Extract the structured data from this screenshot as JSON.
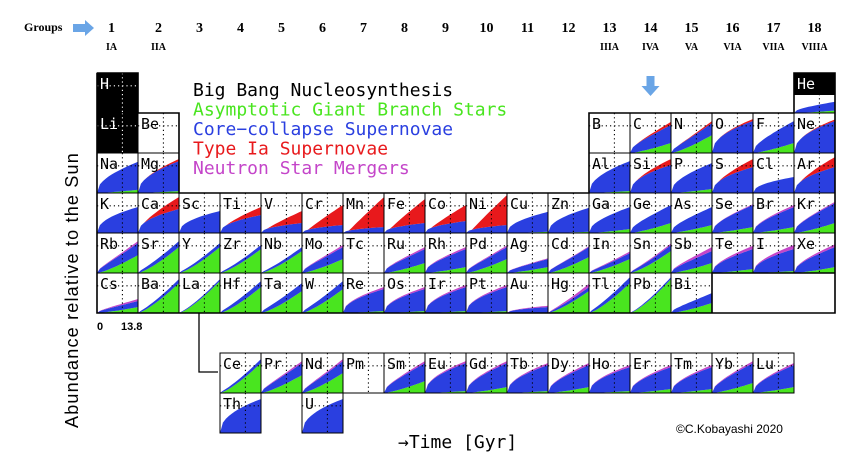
{
  "groups_label": "Groups",
  "group_numbers": [
    "1",
    "2",
    "3",
    "4",
    "5",
    "6",
    "7",
    "8",
    "9",
    "10",
    "11",
    "12",
    "13",
    "14",
    "15",
    "16",
    "17",
    "18"
  ],
  "group_roman": {
    "0": "IA",
    "1": "IIA",
    "12": "IIIA",
    "13": "IVA",
    "14": "VA",
    "15": "VIA",
    "16": "VIIA",
    "17": "VIIIA"
  },
  "y_axis_label": "Abundance relative to the Sun",
  "x_axis_label": "→Time [Gyr]",
  "time_start": "0",
  "time_end": "13.8",
  "copyright": "©C.Kobayashi 2020",
  "legend": [
    {
      "label": "Big Bang Nucleosynthesis",
      "color": "#000000"
    },
    {
      "label": "Asymptotic Giant Branch Stars",
      "color": "#49e51f"
    },
    {
      "label": "Core−collapse Supernovae",
      "color": "#2a3fe0"
    },
    {
      "label": "Type Ia Supernovae",
      "color": "#e8191c"
    },
    {
      "label": "Neutron Star Mergers",
      "color": "#c445c9"
    }
  ],
  "colors": {
    "bbn": "#000000",
    "agb": "#49e51f",
    "ccsn": "#2a3fe0",
    "snia": "#e8191c",
    "nsm": "#c445c9",
    "arrow": "#6aa5e6"
  },
  "elements": [
    {
      "s": "H",
      "r": 1,
      "c": 1,
      "m": [
        0,
        0,
        0,
        0,
        0
      ],
      "bbn": true
    },
    {
      "s": "He",
      "r": 1,
      "c": 18,
      "m": [
        0.06,
        0.22,
        0,
        0,
        0
      ],
      "bbn": true
    },
    {
      "s": "Li",
      "r": 2,
      "c": 1,
      "m": [
        0,
        0,
        0,
        0,
        0
      ],
      "bbn": true
    },
    {
      "s": "Be",
      "r": 2,
      "c": 2,
      "m": [
        0,
        0,
        0,
        0,
        0
      ]
    },
    {
      "s": "B",
      "r": 2,
      "c": 13,
      "m": [
        0,
        0,
        0,
        0,
        0
      ]
    },
    {
      "s": "C",
      "r": 2,
      "c": 14,
      "m": [
        0.25,
        0.45,
        0.08,
        0,
        0
      ]
    },
    {
      "s": "N",
      "r": 2,
      "c": 15,
      "m": [
        0.45,
        0.3,
        0.05,
        0,
        0
      ]
    },
    {
      "s": "O",
      "r": 2,
      "c": 16,
      "m": [
        0,
        0.8,
        0.05,
        0,
        0
      ]
    },
    {
      "s": "F",
      "r": 2,
      "c": 17,
      "m": [
        0.25,
        0.55,
        0,
        0,
        0
      ]
    },
    {
      "s": "Ne",
      "r": 2,
      "c": 18,
      "m": [
        0,
        0.8,
        0.04,
        0,
        0
      ]
    },
    {
      "s": "Na",
      "r": 3,
      "c": 1,
      "m": [
        0.08,
        0.7,
        0,
        0,
        0
      ]
    },
    {
      "s": "Mg",
      "r": 3,
      "c": 2,
      "m": [
        0.05,
        0.75,
        0.05,
        0,
        0
      ]
    },
    {
      "s": "Al",
      "r": 3,
      "c": 13,
      "m": [
        0.05,
        0.75,
        0,
        0,
        0
      ]
    },
    {
      "s": "Si",
      "r": 3,
      "c": 14,
      "m": [
        0,
        0.7,
        0.15,
        0,
        0
      ]
    },
    {
      "s": "P",
      "r": 3,
      "c": 15,
      "m": [
        0.1,
        0.65,
        0,
        0,
        0
      ]
    },
    {
      "s": "S",
      "r": 3,
      "c": 16,
      "m": [
        0,
        0.65,
        0.2,
        0,
        0
      ]
    },
    {
      "s": "Cl",
      "r": 3,
      "c": 17,
      "m": [
        0,
        0.4,
        0,
        0,
        0
      ]
    },
    {
      "s": "Ar",
      "r": 3,
      "c": 18,
      "m": [
        0,
        0.65,
        0.25,
        0,
        0
      ]
    },
    {
      "s": "K",
      "r": 4,
      "c": 1,
      "m": [
        0,
        0.65,
        0,
        0,
        0
      ]
    },
    {
      "s": "Ca",
      "r": 4,
      "c": 2,
      "m": [
        0,
        0.6,
        0.3,
        0,
        0
      ]
    },
    {
      "s": "Sc",
      "r": 4,
      "c": 3,
      "m": [
        0,
        0.55,
        0,
        0,
        0
      ]
    },
    {
      "s": "Ti",
      "r": 4,
      "c": 4,
      "m": [
        0,
        0.45,
        0.2,
        0,
        0
      ]
    },
    {
      "s": "V",
      "r": 4,
      "c": 5,
      "m": [
        0,
        0.25,
        0.3,
        0,
        0
      ]
    },
    {
      "s": "Cr",
      "r": 4,
      "c": 6,
      "m": [
        0,
        0.2,
        0.5,
        0,
        0
      ]
    },
    {
      "s": "Mn",
      "r": 4,
      "c": 7,
      "m": [
        0,
        0.15,
        0.75,
        0,
        0
      ]
    },
    {
      "s": "Fe",
      "r": 4,
      "c": 8,
      "m": [
        0,
        0.25,
        0.6,
        0,
        0
      ]
    },
    {
      "s": "Co",
      "r": 4,
      "c": 9,
      "m": [
        0,
        0.3,
        0.4,
        0,
        0
      ]
    },
    {
      "s": "Ni",
      "r": 4,
      "c": 10,
      "m": [
        0,
        0.2,
        0.75,
        0,
        0
      ]
    },
    {
      "s": "Cu",
      "r": 4,
      "c": 11,
      "m": [
        0.03,
        0.5,
        0,
        0,
        0
      ]
    },
    {
      "s": "Zn",
      "r": 4,
      "c": 12,
      "m": [
        0.03,
        0.6,
        0,
        0,
        0
      ]
    },
    {
      "s": "Ga",
      "r": 4,
      "c": 13,
      "m": [
        0.1,
        0.55,
        0,
        0,
        0
      ]
    },
    {
      "s": "Ge",
      "r": 4,
      "c": 14,
      "m": [
        0.25,
        0.45,
        0,
        0,
        0
      ]
    },
    {
      "s": "As",
      "r": 4,
      "c": 15,
      "m": [
        0.2,
        0.45,
        0,
        0,
        0
      ]
    },
    {
      "s": "Se",
      "r": 4,
      "c": 16,
      "m": [
        0.15,
        0.55,
        0,
        0.02,
        0
      ]
    },
    {
      "s": "Br",
      "r": 4,
      "c": 17,
      "m": [
        0.15,
        0.5,
        0,
        0.05,
        0
      ]
    },
    {
      "s": "Kr",
      "r": 4,
      "c": 18,
      "m": [
        0.25,
        0.5,
        0,
        0.03,
        0
      ]
    },
    {
      "s": "Rb",
      "r": 5,
      "c": 1,
      "m": [
        0.45,
        0.3,
        0,
        0.05,
        0
      ]
    },
    {
      "s": "Sr",
      "r": 5,
      "c": 2,
      "m": [
        0.65,
        0.15,
        0,
        0,
        0
      ]
    },
    {
      "s": "Y",
      "r": 5,
      "c": 3,
      "m": [
        0.65,
        0.1,
        0,
        0,
        0
      ]
    },
    {
      "s": "Zr",
      "r": 5,
      "c": 4,
      "m": [
        0.6,
        0.1,
        0,
        0,
        0
      ]
    },
    {
      "s": "Nb",
      "r": 5,
      "c": 5,
      "m": [
        0.55,
        0.1,
        0,
        0,
        0
      ]
    },
    {
      "s": "Mo",
      "r": 5,
      "c": 6,
      "m": [
        0.35,
        0.3,
        0,
        0.05,
        0
      ]
    },
    {
      "s": "Tc",
      "r": 5,
      "c": 7,
      "m": [
        0,
        0,
        0,
        0,
        0
      ]
    },
    {
      "s": "Ru",
      "r": 5,
      "c": 8,
      "m": [
        0.25,
        0.35,
        0,
        0.05,
        0
      ]
    },
    {
      "s": "Rh",
      "r": 5,
      "c": 9,
      "m": [
        0.15,
        0.45,
        0,
        0.05,
        0
      ]
    },
    {
      "s": "Pd",
      "r": 5,
      "c": 10,
      "m": [
        0.35,
        0.3,
        0,
        0.04,
        0
      ]
    },
    {
      "s": "Ag",
      "r": 5,
      "c": 11,
      "m": [
        0.15,
        0.2,
        0,
        0.02,
        0
      ]
    },
    {
      "s": "Cd",
      "r": 5,
      "c": 12,
      "m": [
        0.4,
        0.25,
        0,
        0.02,
        0
      ]
    },
    {
      "s": "In",
      "r": 5,
      "c": 13,
      "m": [
        0.35,
        0.15,
        0,
        0.04,
        0
      ]
    },
    {
      "s": "Sn",
      "r": 5,
      "c": 14,
      "m": [
        0.55,
        0.15,
        0,
        0.04,
        0
      ]
    },
    {
      "s": "Sb",
      "r": 5,
      "c": 15,
      "m": [
        0.25,
        0.3,
        0,
        0.1,
        0
      ]
    },
    {
      "s": "Te",
      "r": 5,
      "c": 16,
      "m": [
        0.1,
        0.5,
        0,
        0.08,
        0
      ]
    },
    {
      "s": "I",
      "r": 5,
      "c": 17,
      "m": [
        0.05,
        0.55,
        0,
        0.1,
        0
      ]
    },
    {
      "s": "Xe",
      "r": 5,
      "c": 18,
      "m": [
        0.15,
        0.5,
        0,
        0.07,
        0
      ]
    },
    {
      "s": "Cs",
      "r": 6,
      "c": 1,
      "m": [
        0.15,
        0.15,
        0,
        0.05,
        0
      ]
    },
    {
      "s": "Ba",
      "r": 6,
      "c": 2,
      "m": [
        0.75,
        0.1,
        0,
        0,
        0
      ]
    },
    {
      "s": "La",
      "r": 6,
      "c": 3,
      "m": [
        0.8,
        0.05,
        0,
        0,
        0
      ]
    },
    {
      "s": "Hf",
      "r": 6,
      "c": 4,
      "m": [
        0.65,
        0.15,
        0,
        0,
        0
      ]
    },
    {
      "s": "Ta",
      "r": 6,
      "c": 5,
      "m": [
        0.55,
        0.2,
        0,
        0,
        0
      ]
    },
    {
      "s": "W",
      "r": 6,
      "c": 6,
      "m": [
        0.6,
        0.2,
        0,
        0,
        0
      ]
    },
    {
      "s": "Re",
      "r": 6,
      "c": 7,
      "m": [
        0.05,
        0.55,
        0,
        0.05,
        0
      ]
    },
    {
      "s": "Os",
      "r": 6,
      "c": 8,
      "m": [
        0.05,
        0.55,
        0,
        0.05,
        0
      ]
    },
    {
      "s": "Ir",
      "r": 6,
      "c": 9,
      "m": [
        0.05,
        0.6,
        0,
        0.05,
        0
      ]
    },
    {
      "s": "Pt",
      "r": 6,
      "c": 10,
      "m": [
        0.05,
        0.6,
        0,
        0.05,
        0
      ]
    },
    {
      "s": "Au",
      "r": 6,
      "c": 11,
      "m": [
        0,
        0.15,
        0,
        0.03,
        0
      ]
    },
    {
      "s": "Hg",
      "r": 6,
      "c": 12,
      "m": [
        0.55,
        0.1,
        0,
        0.08,
        0
      ]
    },
    {
      "s": "Tl",
      "r": 6,
      "c": 13,
      "m": [
        0.75,
        0.15,
        0,
        0,
        0
      ]
    },
    {
      "s": "Pb",
      "r": 6,
      "c": 14,
      "m": [
        0.85,
        0.05,
        0,
        0,
        0
      ]
    },
    {
      "s": "Bi",
      "r": 6,
      "c": 15,
      "m": [
        0.25,
        0.25,
        0,
        0,
        0
      ]
    },
    {
      "s": "Ce",
      "r": 8,
      "c": 4,
      "m": [
        0.75,
        0.1,
        0,
        0,
        0
      ]
    },
    {
      "s": "Pr",
      "r": 8,
      "c": 5,
      "m": [
        0.45,
        0.3,
        0,
        0.05,
        0
      ]
    },
    {
      "s": "Nd",
      "r": 8,
      "c": 6,
      "m": [
        0.5,
        0.3,
        0,
        0.05,
        0
      ]
    },
    {
      "s": "Pm",
      "r": 8,
      "c": 7,
      "m": [
        0,
        0,
        0,
        0,
        0
      ]
    },
    {
      "s": "Sm",
      "r": 8,
      "c": 8,
      "m": [
        0.3,
        0.45,
        0,
        0.05,
        0
      ]
    },
    {
      "s": "Eu",
      "r": 8,
      "c": 9,
      "m": [
        0.05,
        0.7,
        0,
        0.05,
        0
      ]
    },
    {
      "s": "Gd",
      "r": 8,
      "c": 10,
      "m": [
        0.15,
        0.6,
        0,
        0.05,
        0
      ]
    },
    {
      "s": "Tb",
      "r": 8,
      "c": 11,
      "m": [
        0.05,
        0.65,
        0,
        0.05,
        0
      ]
    },
    {
      "s": "Dy",
      "r": 8,
      "c": 12,
      "m": [
        0.15,
        0.55,
        0,
        0.05,
        0
      ]
    },
    {
      "s": "Ho",
      "r": 8,
      "c": 13,
      "m": [
        0.05,
        0.6,
        0,
        0.05,
        0
      ]
    },
    {
      "s": "Er",
      "r": 8,
      "c": 14,
      "m": [
        0.1,
        0.55,
        0,
        0.05,
        0
      ]
    },
    {
      "s": "Tm",
      "r": 8,
      "c": 15,
      "m": [
        0.1,
        0.55,
        0,
        0.05,
        0
      ]
    },
    {
      "s": "Yb",
      "r": 8,
      "c": 16,
      "m": [
        0.25,
        0.5,
        0,
        0.05,
        0
      ]
    },
    {
      "s": "Lu",
      "r": 8,
      "c": 17,
      "m": [
        0.15,
        0.55,
        0,
        0.05,
        0
      ]
    },
    {
      "s": "Th",
      "r": 9,
      "c": 4,
      "m": [
        0,
        0.85,
        0,
        0,
        0
      ]
    },
    {
      "s": "U",
      "r": 9,
      "c": 6,
      "m": [
        0,
        0.85,
        0,
        0,
        0
      ]
    }
  ]
}
